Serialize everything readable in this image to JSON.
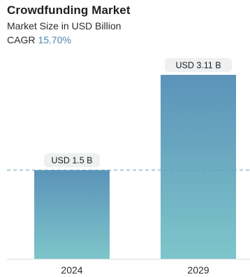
{
  "header": {
    "title": "Crowdfunding Market",
    "subtitle": "Market Size in USD Billion",
    "cagr_label": "CAGR",
    "cagr_value": "15.70%"
  },
  "colors": {
    "bar_top": "#5b93b9",
    "bar_bottom": "#7ec5ca",
    "label_bg": "#eef0f1",
    "reference_line": "#6d9db3",
    "cagr_value": "#4b86ad",
    "text": "#2b2b2b"
  },
  "chart_data": {
    "type": "bar",
    "categories": [
      "2024",
      "2029"
    ],
    "values": [
      1.5,
      3.11
    ],
    "data_labels": [
      "USD 1.5 B",
      "USD 3.11 B"
    ],
    "reference_line": {
      "value": 1.5,
      "style": "dashed"
    },
    "ylim": [
      0,
      3.11
    ],
    "grid": false,
    "legend": "none"
  }
}
